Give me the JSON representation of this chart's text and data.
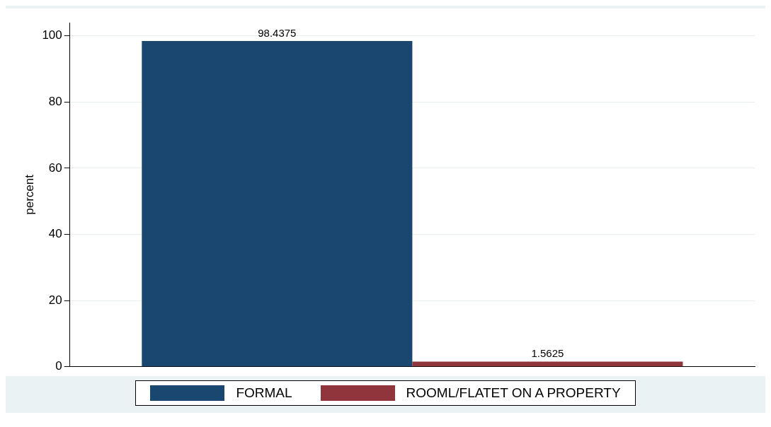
{
  "chart_data": {
    "type": "bar",
    "categories": [
      null
    ],
    "series": [
      {
        "name": "FORMAL",
        "color": "#1a476f",
        "values": [
          98.4375
        ]
      },
      {
        "name": "ROOML/FLATET ON A PROPERTY",
        "color": "#90353b",
        "values": [
          1.5625
        ]
      }
    ],
    "ylabel": "percent",
    "ylim": [
      0,
      104
    ],
    "yticks": [
      0,
      20,
      40,
      60,
      80,
      100
    ],
    "grid": "y",
    "legend": "bottom",
    "data_labels": true
  }
}
